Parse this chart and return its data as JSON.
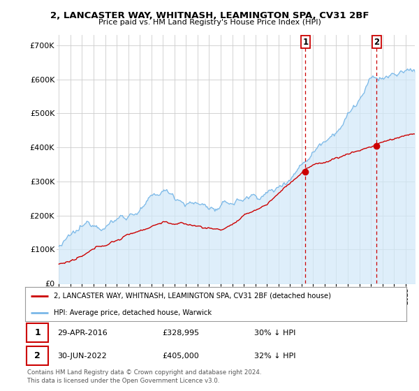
{
  "title": "2, LANCASTER WAY, WHITNASH, LEAMINGTON SPA, CV31 2BF",
  "subtitle": "Price paid vs. HM Land Registry's House Price Index (HPI)",
  "ylabel_ticks": [
    "£0",
    "£100K",
    "£200K",
    "£300K",
    "£400K",
    "£500K",
    "£600K",
    "£700K"
  ],
  "ytick_vals": [
    0,
    100000,
    200000,
    300000,
    400000,
    500000,
    600000,
    700000
  ],
  "ylim": [
    0,
    730000
  ],
  "hpi_color": "#7ab8e8",
  "hpi_fill_color": "#d0e8f8",
  "price_color": "#cc0000",
  "sale1_price": 328995,
  "sale2_price": 405000,
  "sale1_year": 2016.333,
  "sale2_year": 2022.5,
  "sale1_date": "29-APR-2016",
  "sale2_date": "30-JUN-2022",
  "sale1_hpi_pct": "30% ↓ HPI",
  "sale2_hpi_pct": "32% ↓ HPI",
  "legend_line1": "2, LANCASTER WAY, WHITNASH, LEAMINGTON SPA, CV31 2BF (detached house)",
  "legend_line2": "HPI: Average price, detached house, Warwick",
  "footer": "Contains HM Land Registry data © Crown copyright and database right 2024.\nThis data is licensed under the Open Government Licence v3.0.",
  "background_color": "#ffffff",
  "grid_color": "#cccccc"
}
